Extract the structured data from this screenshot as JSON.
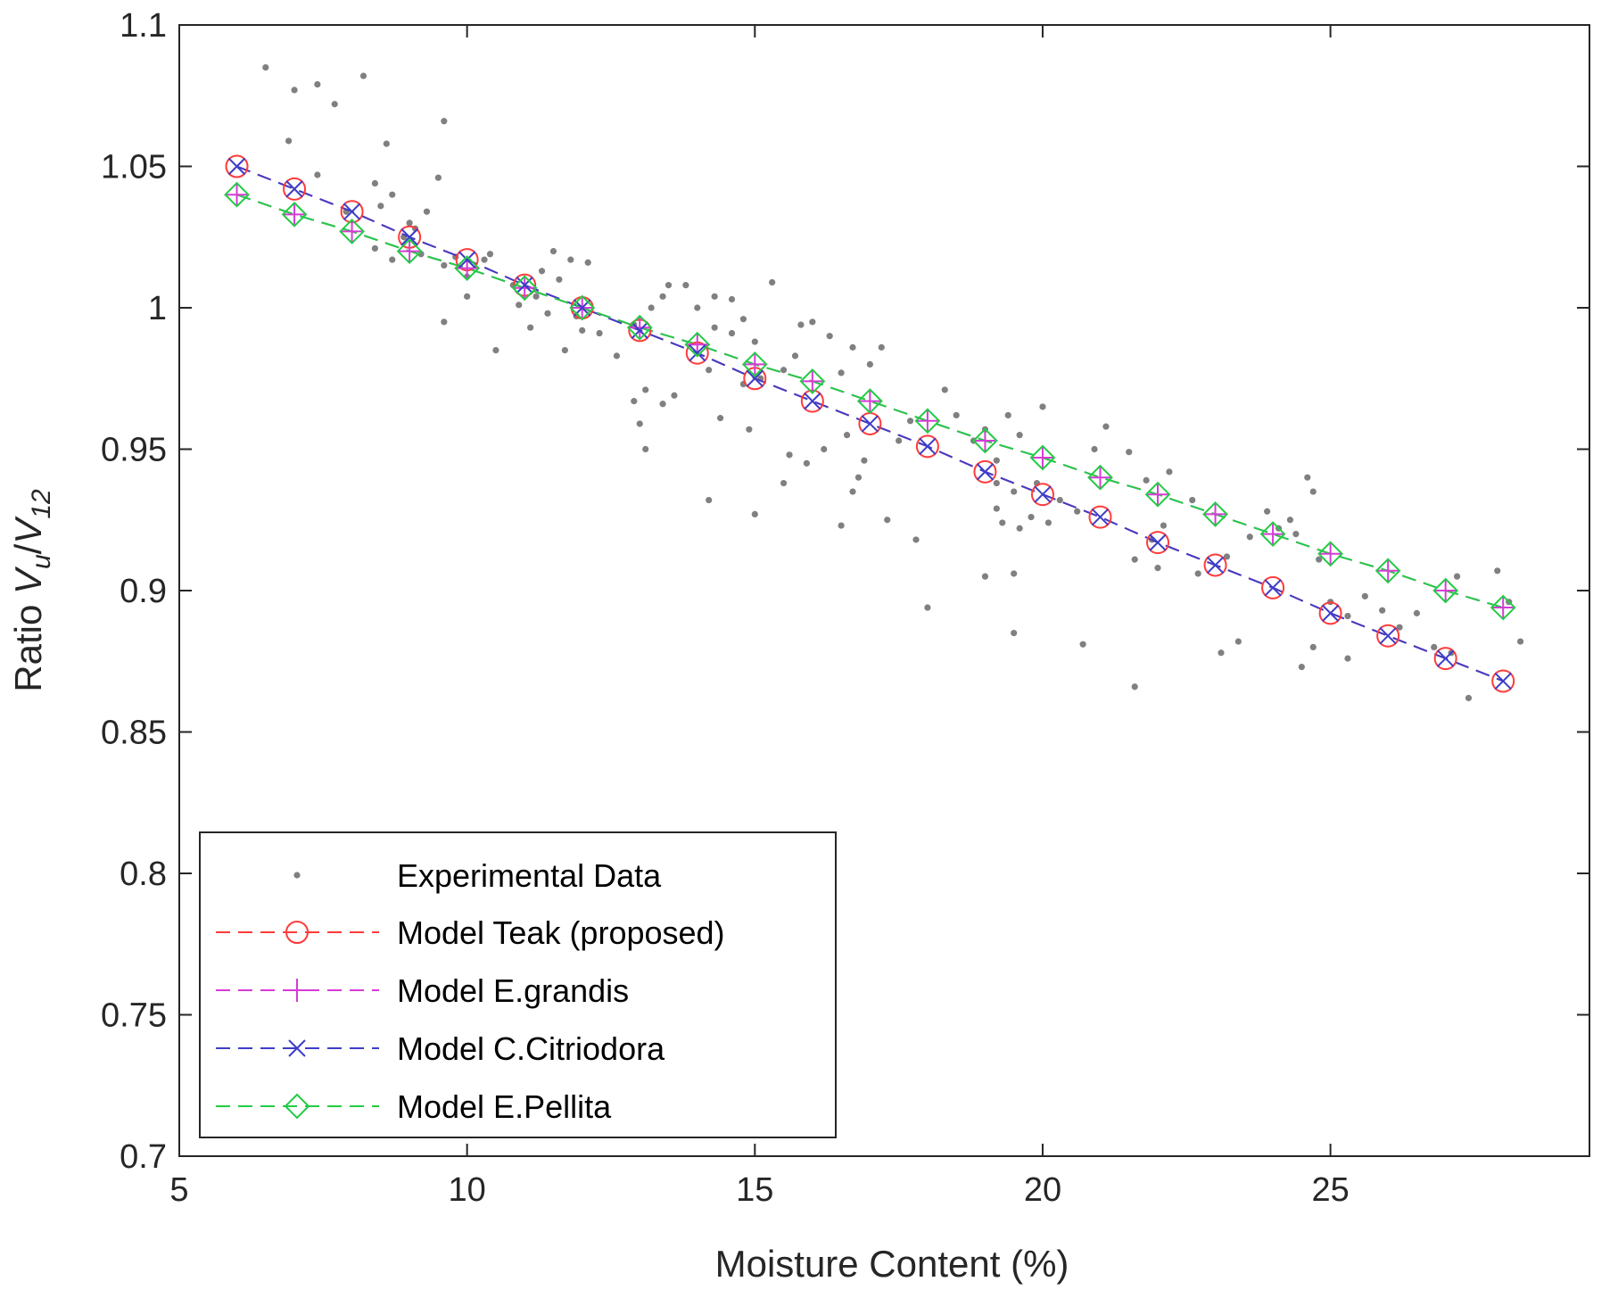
{
  "chart_data": {
    "type": "line",
    "title": "",
    "xlabel": "Moisture Content (%)",
    "ylabel": "Ratio V_u/V_12",
    "ylabel_parts": {
      "prefix": "Ratio ",
      "v1": "V",
      "sub1": "u",
      "slash": "/",
      "v2": "V",
      "sub2": "12"
    },
    "xlim": [
      5,
      29.5
    ],
    "ylim": [
      0.7,
      1.1
    ],
    "xticks": [
      5,
      10,
      15,
      20,
      25
    ],
    "xtick_labels": [
      "5",
      "10",
      "15",
      "20",
      "25"
    ],
    "yticks": [
      0.7,
      0.75,
      0.8,
      0.85,
      0.9,
      0.95,
      1.0,
      1.05,
      1.1
    ],
    "ytick_labels": [
      "0.7",
      "0.75",
      "0.8",
      "0.85",
      "0.9",
      "0.95",
      "1",
      "1.05",
      "1.1"
    ],
    "grid": false,
    "legend_position": "bottom-left",
    "series": [
      {
        "name": "Experimental Data",
        "kind": "scatter",
        "marker": "dot",
        "color": "#808080",
        "points": [
          [
            6.5,
            1.085
          ],
          [
            7.0,
            1.077
          ],
          [
            7.4,
            1.079
          ],
          [
            7.7,
            1.072
          ],
          [
            8.2,
            1.082
          ],
          [
            9.6,
            1.066
          ],
          [
            8.6,
            1.058
          ],
          [
            6.9,
            1.059
          ],
          [
            7.4,
            1.047
          ],
          [
            9.5,
            1.046
          ],
          [
            8.4,
            1.044
          ],
          [
            8.7,
            1.04
          ],
          [
            8.5,
            1.036
          ],
          [
            9.3,
            1.034
          ],
          [
            7.9,
            1.034
          ],
          [
            9.0,
            1.03
          ],
          [
            9.1,
            1.028
          ],
          [
            8.9,
            1.025
          ],
          [
            8.4,
            1.021
          ],
          [
            9.8,
            1.018
          ],
          [
            10.3,
            1.017
          ],
          [
            8.7,
            1.017
          ],
          [
            9.2,
            1.019
          ],
          [
            9.6,
            1.015
          ],
          [
            10.0,
            1.011
          ],
          [
            10.4,
            1.019
          ],
          [
            10.8,
            1.008
          ],
          [
            11.3,
            1.013
          ],
          [
            11.5,
            1.02
          ],
          [
            12.1,
            1.016
          ],
          [
            11.8,
            1.017
          ],
          [
            11.6,
            1.01
          ],
          [
            11.2,
            1.004
          ],
          [
            10.9,
            1.001
          ],
          [
            11.4,
            0.998
          ],
          [
            11.9,
            0.997
          ],
          [
            12.0,
            0.992
          ],
          [
            12.3,
            0.991
          ],
          [
            11.7,
            0.985
          ],
          [
            11.1,
            0.993
          ],
          [
            10.5,
            0.985
          ],
          [
            9.6,
            0.995
          ],
          [
            10.0,
            1.004
          ],
          [
            12.6,
            0.983
          ],
          [
            12.9,
            0.994
          ],
          [
            13.2,
            1.0
          ],
          [
            13.4,
            1.004
          ],
          [
            13.5,
            1.008
          ],
          [
            13.8,
            1.008
          ],
          [
            14.0,
            1.0
          ],
          [
            14.3,
            1.004
          ],
          [
            14.6,
            1.003
          ],
          [
            14.8,
            0.996
          ],
          [
            14.3,
            0.993
          ],
          [
            14.6,
            0.991
          ],
          [
            15.0,
            0.988
          ],
          [
            15.3,
            1.009
          ],
          [
            15.8,
            0.994
          ],
          [
            16.0,
            0.995
          ],
          [
            16.3,
            0.99
          ],
          [
            16.7,
            0.986
          ],
          [
            17.2,
            0.986
          ],
          [
            17.0,
            0.98
          ],
          [
            16.5,
            0.977
          ],
          [
            15.7,
            0.983
          ],
          [
            15.5,
            0.978
          ],
          [
            15.1,
            0.975
          ],
          [
            14.8,
            0.973
          ],
          [
            14.2,
            0.978
          ],
          [
            13.6,
            0.969
          ],
          [
            13.1,
            0.971
          ],
          [
            12.9,
            0.967
          ],
          [
            13.0,
            0.959
          ],
          [
            13.1,
            0.95
          ],
          [
            13.4,
            0.966
          ],
          [
            14.4,
            0.961
          ],
          [
            14.9,
            0.957
          ],
          [
            15.6,
            0.948
          ],
          [
            15.9,
            0.945
          ],
          [
            16.6,
            0.955
          ],
          [
            16.2,
            0.95
          ],
          [
            16.9,
            0.946
          ],
          [
            17.7,
            0.96
          ],
          [
            17.5,
            0.953
          ],
          [
            16.8,
            0.94
          ],
          [
            17.3,
            0.925
          ],
          [
            17.8,
            0.918
          ],
          [
            16.5,
            0.923
          ],
          [
            15.5,
            0.938
          ],
          [
            14.2,
            0.932
          ],
          [
            15.0,
            0.927
          ],
          [
            16.7,
            0.935
          ],
          [
            18.3,
            0.971
          ],
          [
            18.5,
            0.962
          ],
          [
            18.8,
            0.953
          ],
          [
            19.0,
            0.957
          ],
          [
            19.2,
            0.946
          ],
          [
            19.4,
            0.962
          ],
          [
            19.6,
            0.955
          ],
          [
            19.2,
            0.938
          ],
          [
            19.5,
            0.935
          ],
          [
            19.9,
            0.938
          ],
          [
            20.3,
            0.932
          ],
          [
            20.6,
            0.928
          ],
          [
            20.1,
            0.924
          ],
          [
            19.8,
            0.926
          ],
          [
            19.3,
            0.924
          ],
          [
            19.6,
            0.922
          ],
          [
            19.2,
            0.929
          ],
          [
            18.0,
            0.894
          ],
          [
            19.0,
            0.905
          ],
          [
            19.5,
            0.906
          ],
          [
            19.5,
            0.885
          ],
          [
            20.0,
            0.965
          ],
          [
            21.1,
            0.958
          ],
          [
            20.9,
            0.95
          ],
          [
            21.5,
            0.949
          ],
          [
            21.8,
            0.939
          ],
          [
            22.2,
            0.942
          ],
          [
            22.6,
            0.932
          ],
          [
            22.1,
            0.923
          ],
          [
            21.9,
            0.918
          ],
          [
            21.6,
            0.911
          ],
          [
            22.0,
            0.908
          ],
          [
            22.7,
            0.906
          ],
          [
            23.2,
            0.912
          ],
          [
            23.6,
            0.919
          ],
          [
            23.9,
            0.928
          ],
          [
            24.3,
            0.925
          ],
          [
            24.1,
            0.922
          ],
          [
            24.7,
            0.935
          ],
          [
            24.6,
            0.94
          ],
          [
            24.4,
            0.92
          ],
          [
            24.8,
            0.911
          ],
          [
            25.0,
            0.896
          ],
          [
            25.3,
            0.891
          ],
          [
            25.6,
            0.898
          ],
          [
            25.9,
            0.893
          ],
          [
            26.2,
            0.887
          ],
          [
            26.5,
            0.892
          ],
          [
            26.8,
            0.88
          ],
          [
            27.1,
            0.878
          ],
          [
            27.4,
            0.862
          ],
          [
            25.3,
            0.876
          ],
          [
            24.7,
            0.88
          ],
          [
            24.5,
            0.873
          ],
          [
            23.1,
            0.878
          ],
          [
            23.4,
            0.882
          ],
          [
            20.7,
            0.881
          ],
          [
            21.6,
            0.866
          ],
          [
            27.9,
            0.907
          ],
          [
            28.3,
            0.882
          ],
          [
            28.1,
            0.896
          ],
          [
            27.2,
            0.905
          ]
        ]
      },
      {
        "name": "Model Teak (proposed)",
        "kind": "line",
        "marker": "circle",
        "color": "#ff3b3b",
        "x": [
          6,
          7,
          8,
          9,
          10,
          11,
          12,
          13,
          14,
          15,
          16,
          17,
          18,
          19,
          20,
          21,
          22,
          23,
          24,
          25,
          26,
          27,
          28
        ],
        "y": [
          1.05,
          1.042,
          1.034,
          1.025,
          1.017,
          1.008,
          1.0,
          0.992,
          0.984,
          0.975,
          0.967,
          0.959,
          0.951,
          0.942,
          0.934,
          0.926,
          0.917,
          0.909,
          0.901,
          0.892,
          0.884,
          0.876,
          0.868
        ]
      },
      {
        "name": "Model E.grandis",
        "kind": "line",
        "marker": "plus",
        "color": "#d63bd6",
        "x": [
          6,
          7,
          8,
          9,
          10,
          11,
          12,
          13,
          14,
          15,
          16,
          17,
          18,
          19,
          20,
          21,
          22,
          23,
          24,
          25,
          26,
          27,
          28
        ],
        "y": [
          1.04,
          1.033,
          1.027,
          1.02,
          1.014,
          1.007,
          1.0,
          0.993,
          0.987,
          0.98,
          0.974,
          0.967,
          0.96,
          0.953,
          0.947,
          0.94,
          0.934,
          0.927,
          0.92,
          0.913,
          0.907,
          0.9,
          0.894
        ]
      },
      {
        "name": "Model C.Citriodora",
        "kind": "line",
        "marker": "x",
        "color": "#3d3dc8",
        "x": [
          6,
          7,
          8,
          9,
          10,
          11,
          12,
          13,
          14,
          15,
          16,
          17,
          18,
          19,
          20,
          21,
          22,
          23,
          24,
          25,
          26,
          27,
          28
        ],
        "y": [
          1.05,
          1.042,
          1.034,
          1.025,
          1.017,
          1.008,
          1.0,
          0.992,
          0.984,
          0.975,
          0.967,
          0.959,
          0.951,
          0.942,
          0.934,
          0.926,
          0.917,
          0.909,
          0.901,
          0.892,
          0.884,
          0.876,
          0.868
        ]
      },
      {
        "name": "Model E.Pellita",
        "kind": "line",
        "marker": "diamond",
        "color": "#22cc44",
        "x": [
          6,
          7,
          8,
          9,
          10,
          11,
          12,
          13,
          14,
          15,
          16,
          17,
          18,
          19,
          20,
          21,
          22,
          23,
          24,
          25,
          26,
          27,
          28
        ],
        "y": [
          1.04,
          1.033,
          1.027,
          1.02,
          1.014,
          1.007,
          1.0,
          0.993,
          0.987,
          0.98,
          0.974,
          0.967,
          0.96,
          0.953,
          0.947,
          0.94,
          0.934,
          0.927,
          0.92,
          0.913,
          0.907,
          0.9,
          0.894
        ]
      }
    ]
  }
}
